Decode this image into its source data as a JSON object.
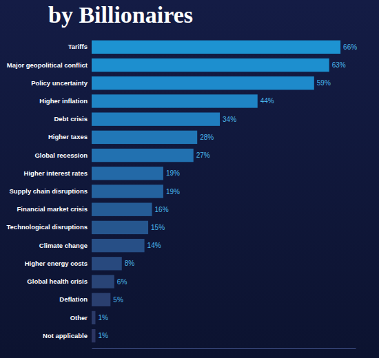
{
  "chart_data": {
    "type": "bar",
    "orientation": "horizontal",
    "title": "by Billionaires",
    "categories": [
      "Tariffs",
      "Major geopolitical conflict",
      "Policy uncertainty",
      "Higher inflation",
      "Debt crisis",
      "Higher taxes",
      "Global recession",
      "Higher interest rates",
      "Supply chain disruptions",
      "Financial market crisis",
      "Technological disruptions",
      "Climate change",
      "Higher energy costs",
      "Global health crisis",
      "Deflation",
      "Other",
      "Not applicable"
    ],
    "values": [
      66,
      63,
      59,
      44,
      34,
      28,
      27,
      19,
      19,
      16,
      15,
      14,
      8,
      6,
      5,
      1,
      1
    ],
    "value_labels": [
      "66%",
      "63%",
      "59%",
      "44%",
      "34%",
      "28%",
      "27%",
      "19%",
      "19%",
      "16%",
      "15%",
      "14%",
      "8%",
      "6%",
      "5%",
      "1%",
      "1%"
    ],
    "colors": [
      "#1d93d2",
      "#1d8fcf",
      "#1e8acb",
      "#1f84c5",
      "#207dbe",
      "#2177b7",
      "#2271b0",
      "#2369a7",
      "#24629e",
      "#255c96",
      "#26568e",
      "#274f86",
      "#28497e",
      "#294476",
      "#2a3f6f",
      "#2b3a68",
      "#2c3562"
    ],
    "xlim": [
      0,
      70
    ],
    "xticks": [],
    "data_labels": true,
    "tick_labels": "y",
    "grid": false
  }
}
